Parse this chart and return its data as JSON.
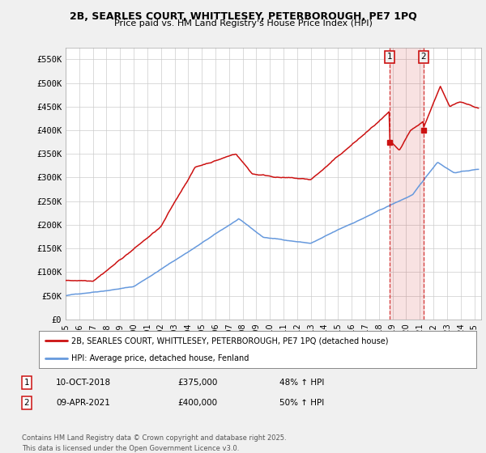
{
  "title_line1": "2B, SEARLES COURT, WHITTLESEY, PETERBOROUGH, PE7 1PQ",
  "title_line2": "Price paid vs. HM Land Registry's House Price Index (HPI)",
  "ylabel_ticks": [
    "£0",
    "£50K",
    "£100K",
    "£150K",
    "£200K",
    "£250K",
    "£300K",
    "£350K",
    "£400K",
    "£450K",
    "£500K",
    "£550K"
  ],
  "ytick_values": [
    0,
    50000,
    100000,
    150000,
    200000,
    250000,
    300000,
    350000,
    400000,
    450000,
    500000,
    550000
  ],
  "ylim": [
    0,
    575000
  ],
  "xlim_start": 1995.0,
  "xlim_end": 2025.5,
  "hpi_color": "#6699DD",
  "price_color": "#CC1111",
  "marker1_x": 2018.78,
  "marker1_y": 375000,
  "marker2_x": 2021.27,
  "marker2_y": 400000,
  "legend_label1": "2B, SEARLES COURT, WHITTLESEY, PETERBOROUGH, PE7 1PQ (detached house)",
  "legend_label2": "HPI: Average price, detached house, Fenland",
  "annotation1_num": "1",
  "annotation1_date": "10-OCT-2018",
  "annotation1_price": "£375,000",
  "annotation1_hpi": "48% ↑ HPI",
  "annotation2_num": "2",
  "annotation2_date": "09-APR-2021",
  "annotation2_price": "£400,000",
  "annotation2_hpi": "50% ↑ HPI",
  "footer": "Contains HM Land Registry data © Crown copyright and database right 2025.\nThis data is licensed under the Open Government Licence v3.0.",
  "bg_color": "#F0F0F0",
  "plot_bg_color": "#FFFFFF",
  "xtick_years": [
    1995,
    1996,
    1997,
    1998,
    1999,
    2000,
    2001,
    2002,
    2003,
    2004,
    2005,
    2006,
    2007,
    2008,
    2009,
    2010,
    2011,
    2012,
    2013,
    2014,
    2015,
    2016,
    2017,
    2018,
    2019,
    2020,
    2021,
    2022,
    2023,
    2024,
    2025
  ]
}
